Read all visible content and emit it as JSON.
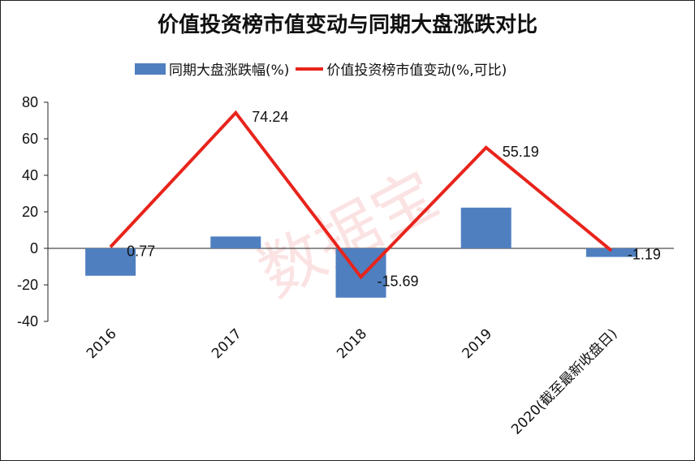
{
  "chart_data": {
    "type": "bar",
    "title": "价值投资榜市值变动与同期大盘涨跌对比",
    "categories": [
      "2016",
      "2017",
      "2018",
      "2019",
      "2020(截至最新收盘日)"
    ],
    "series": [
      {
        "name": "同期大盘涨跌幅(%)",
        "kind": "bar",
        "color": "#4f7fbf",
        "values": [
          -15.0,
          6.5,
          -27.0,
          22.3,
          -4.7
        ]
      },
      {
        "name": "价值投资榜市值变动(%,可比)",
        "kind": "line",
        "color": "#e8241b",
        "values": [
          0.77,
          74.24,
          -15.69,
          55.19,
          -1.19
        ],
        "data_labels": [
          "0.77",
          "74.24",
          "-15.69",
          "55.19",
          "-1.19"
        ]
      }
    ],
    "ylim": [
      -40,
      80
    ],
    "yticks": [
      80,
      60,
      40,
      20,
      0,
      -20,
      -40
    ],
    "xlabel": "",
    "ylabel": "",
    "legend_position": "top-center",
    "grid": false
  },
  "watermark": "数据宝"
}
